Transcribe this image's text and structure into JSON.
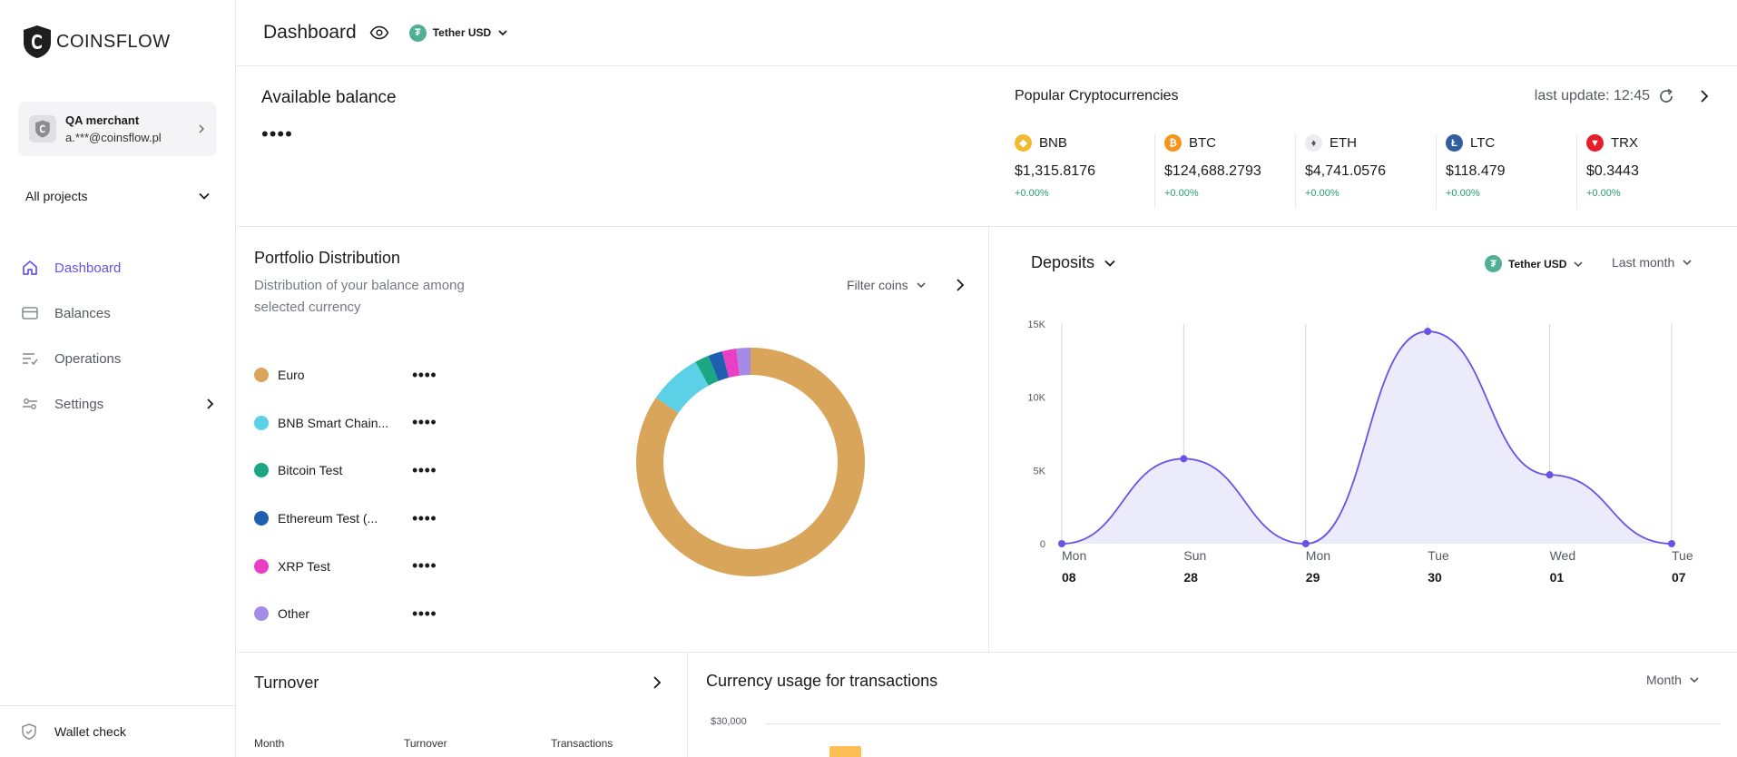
{
  "brand": {
    "name": "COINSFLOW"
  },
  "merchant": {
    "name": "QA merchant",
    "email": "a.***@coinsflow.pl"
  },
  "projects": {
    "selected": "All projects"
  },
  "nav": {
    "items": [
      {
        "label": "Dashboard",
        "icon": "home-icon",
        "active": true
      },
      {
        "label": "Balances",
        "icon": "card-icon"
      },
      {
        "label": "Operations",
        "icon": "list-check-icon"
      },
      {
        "label": "Settings",
        "icon": "sliders-icon"
      }
    ],
    "wallet_check": "Wallet check"
  },
  "header": {
    "title": "Dashboard",
    "currency": "Tether USD"
  },
  "balance": {
    "title": "Available balance",
    "value": "••••"
  },
  "popular": {
    "title": "Popular Cryptocurrencies",
    "last_update": "last update: 12:45",
    "coins": [
      {
        "symbol": "BNB",
        "price": "$1,315.8176",
        "change": "+0.00%",
        "color": "#f3ba2f"
      },
      {
        "symbol": "BTC",
        "price": "$124,688.2793",
        "change": "+0.00%",
        "color": "#f7931a"
      },
      {
        "symbol": "ETH",
        "price": "$4,741.0576",
        "change": "+0.00%",
        "color": "#e9e9ee"
      },
      {
        "symbol": "LTC",
        "price": "$118.479",
        "change": "+0.00%",
        "color": "#345d9d"
      },
      {
        "symbol": "TRX",
        "price": "$0.3443",
        "change": "+0.00%",
        "color": "#e61e2b"
      }
    ]
  },
  "portfolio": {
    "title": "Portfolio Distribution",
    "subtitle": "Distribution of your balance among selected currency",
    "filter": "Filter coins",
    "items": [
      {
        "label": "Euro",
        "value": "••••",
        "color": "#d9a55a",
        "share": 0.845
      },
      {
        "label": "BNB Smart Chain...",
        "value": "••••",
        "color": "#5bd0e6",
        "share": 0.075
      },
      {
        "label": "Bitcoin Test",
        "value": "••••",
        "color": "#1aa884",
        "share": 0.02
      },
      {
        "label": "Ethereum Test (...",
        "value": "••••",
        "color": "#1f5fb0",
        "share": 0.02
      },
      {
        "label": "XRP Test",
        "value": "••••",
        "color": "#e83fc4",
        "share": 0.02
      },
      {
        "label": "Other",
        "value": "••••",
        "color": "#a38be6",
        "share": 0.02
      }
    ]
  },
  "deposits": {
    "title": "Deposits",
    "currency": "Tether USD",
    "period": "Last month"
  },
  "chart_data": {
    "type": "area",
    "x_day": [
      "Mon",
      "Sun",
      "Mon",
      "Tue",
      "Wed",
      "Tue"
    ],
    "x_date": [
      "08",
      "28",
      "29",
      "30",
      "01",
      "07"
    ],
    "y_ticks": [
      "0",
      "5K",
      "10K",
      "15K"
    ],
    "series": [
      {
        "values": [
          0,
          5800,
          0,
          14500,
          4700,
          0
        ],
        "color": "#6a52e6"
      }
    ],
    "ylim": [
      0,
      15000
    ],
    "grid": "vertical"
  },
  "turnover": {
    "title": "Turnover",
    "columns": [
      "Month",
      "Turnover",
      "Transactions"
    ]
  },
  "usage": {
    "title": "Currency usage for transactions",
    "period": "Month",
    "tick": "$30,000"
  }
}
